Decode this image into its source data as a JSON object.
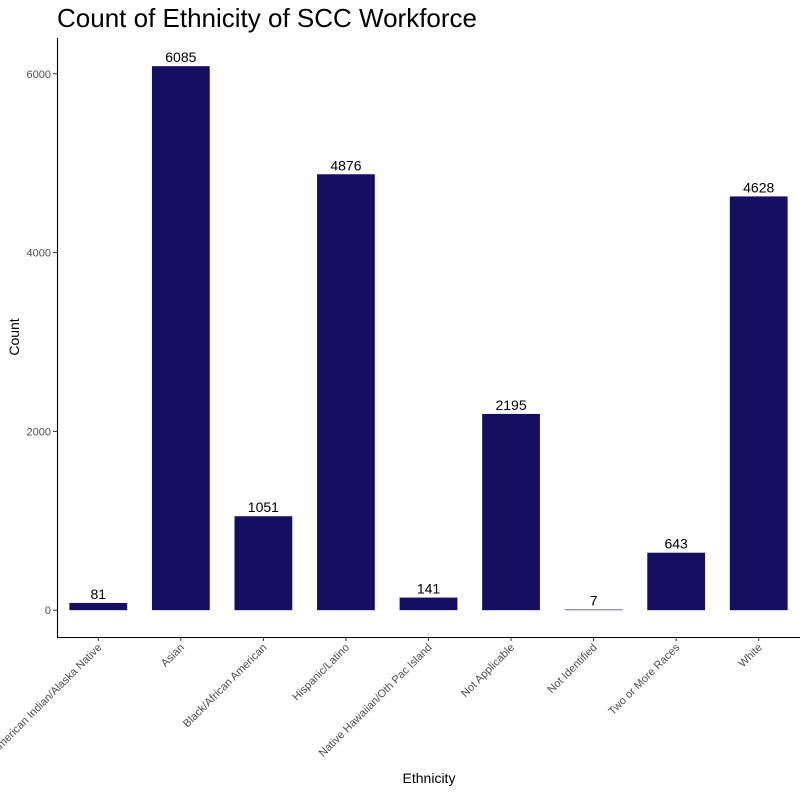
{
  "chart_data": {
    "type": "bar",
    "title": "Count of Ethnicity of SCC Workforce",
    "xlabel": "Ethnicity",
    "ylabel": "Count",
    "categories": [
      "American Indian/Alaska Native",
      "Asian",
      "Black/African American",
      "Hispanic/Latino",
      "Native Hawaiian/Oth Pac Island",
      "Not Applicable",
      "Not Identified",
      "Two or More Races",
      "White"
    ],
    "values": [
      81,
      6085,
      1051,
      4876,
      141,
      2195,
      7,
      643,
      4628
    ],
    "yticks": [
      0,
      2000,
      4000,
      6000
    ],
    "ylim": [
      -300,
      6400
    ],
    "bar_color": "#160e61",
    "grid": false,
    "data_labels": true
  }
}
